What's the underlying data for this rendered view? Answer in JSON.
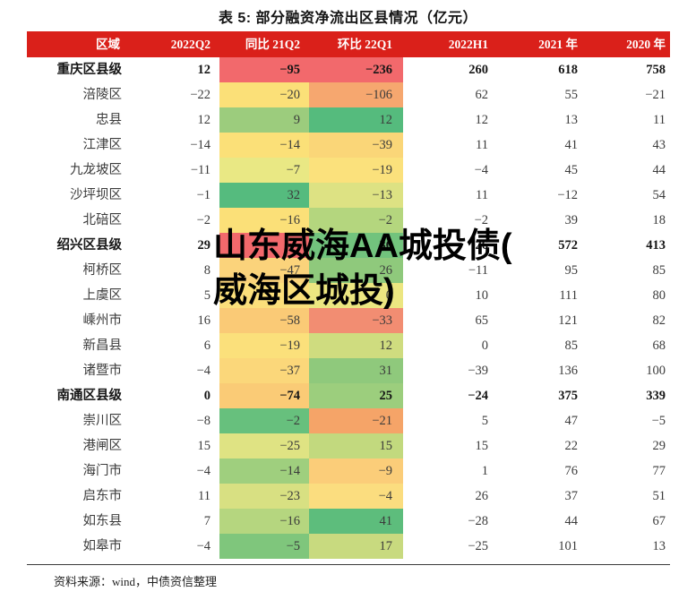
{
  "title": "表 5: 部分融资净流出区县情况（亿元）",
  "watermark": {
    "line1": "山东威海AA城投债(",
    "line2": "威海区城投)"
  },
  "source_note": "资料来源：wind，中债资信整理",
  "colors": {
    "header_bg": "#DA201A",
    "header_text": "#FFFFFF",
    "scale_red": "#F2696C",
    "scale_yellow": "#FBE078",
    "scale_green": "#55BB7D"
  },
  "table": {
    "columns": [
      "区域",
      "2022Q2",
      "同比 21Q2",
      "环比 22Q1",
      "2022H1",
      "2021 年",
      "2020 年"
    ],
    "rows": [
      {
        "name": "重庆区县级",
        "bold": true,
        "values": [
          "12",
          "−95",
          "−236",
          "260",
          "618",
          "758"
        ],
        "yoy_color": "#F2696C",
        "qoq_color": "#F2696C"
      },
      {
        "name": "涪陵区",
        "bold": false,
        "values": [
          "−22",
          "−20",
          "−106",
          "62",
          "55",
          "−21"
        ],
        "yoy_color": "#FBE078",
        "qoq_color": "#F6A76F"
      },
      {
        "name": "忠县",
        "bold": false,
        "values": [
          "12",
          "9",
          "12",
          "12",
          "13",
          "11"
        ],
        "yoy_color": "#9CCC7D",
        "qoq_color": "#55BB7D"
      },
      {
        "name": "江津区",
        "bold": false,
        "values": [
          "−14",
          "−14",
          "−39",
          "11",
          "41",
          "43"
        ],
        "yoy_color": "#FBE078",
        "qoq_color": "#FAD678"
      },
      {
        "name": "九龙坡区",
        "bold": false,
        "values": [
          "−11",
          "−7",
          "−19",
          "−4",
          "45",
          "44"
        ],
        "yoy_color": "#E9E884",
        "qoq_color": "#FBE17C"
      },
      {
        "name": "沙坪坝区",
        "bold": false,
        "values": [
          "−1",
          "32",
          "−13",
          "11",
          "−12",
          "54"
        ],
        "yoy_color": "#55BB7E",
        "qoq_color": "#DDE283"
      },
      {
        "name": "北碚区",
        "bold": false,
        "values": [
          "−2",
          "−16",
          "−2",
          "−2",
          "39",
          "18"
        ],
        "yoy_color": "#FBE078",
        "qoq_color": "#B4D67E"
      },
      {
        "name": "绍兴区县级",
        "bold": true,
        "values": [
          "29",
          "",
          "36",
          "26",
          "572",
          "413"
        ],
        "yoy_color": "#F2696C",
        "qoq_color": "#72C37D"
      },
      {
        "name": "柯桥区",
        "bold": false,
        "values": [
          "8",
          "−47",
          "26",
          "−11",
          "95",
          "85"
        ],
        "yoy_color": "#FBD37B",
        "qoq_color": "#8FC97C"
      },
      {
        "name": "上虞区",
        "bold": false,
        "values": [
          "5",
          "",
          "0",
          "10",
          "111",
          "80"
        ],
        "yoy_color": "#FBDF7B",
        "qoq_color": "#ECE681"
      },
      {
        "name": "嵊州市",
        "bold": false,
        "values": [
          "16",
          "−58",
          "−33",
          "65",
          "121",
          "82"
        ],
        "yoy_color": "#FACA76",
        "qoq_color": "#F28D72"
      },
      {
        "name": "新昌县",
        "bold": false,
        "values": [
          "6",
          "−19",
          "12",
          "0",
          "85",
          "68"
        ],
        "yoy_color": "#FBE07B",
        "qoq_color": "#CFDC7F"
      },
      {
        "name": "诸暨市",
        "bold": false,
        "values": [
          "−4",
          "−37",
          "31",
          "−39",
          "136",
          "100"
        ],
        "yoy_color": "#FBD77A",
        "qoq_color": "#8FC97C"
      },
      {
        "name": "南通区县级",
        "bold": true,
        "values": [
          "0",
          "−74",
          "25",
          "−24",
          "375",
          "339"
        ],
        "yoy_color": "#FACB76",
        "qoq_color": "#9CCE7D"
      },
      {
        "name": "崇川区",
        "bold": false,
        "values": [
          "−8",
          "−2",
          "−21",
          "5",
          "47",
          "−5"
        ],
        "yoy_color": "#67C07D",
        "qoq_color": "#F5A468"
      },
      {
        "name": "港闸区",
        "bold": false,
        "values": [
          "15",
          "−25",
          "15",
          "15",
          "22",
          "29"
        ],
        "yoy_color": "#DFE383",
        "qoq_color": "#C2D97E"
      },
      {
        "name": "海门市",
        "bold": false,
        "values": [
          "−4",
          "−14",
          "−9",
          "1",
          "76",
          "77"
        ],
        "yoy_color": "#9FCF7E",
        "qoq_color": "#FBCD79"
      },
      {
        "name": "启东市",
        "bold": false,
        "values": [
          "11",
          "−23",
          "−4",
          "26",
          "37",
          "51"
        ],
        "yoy_color": "#D8E082",
        "qoq_color": "#FBDD7F"
      },
      {
        "name": "如东县",
        "bold": false,
        "values": [
          "7",
          "−16",
          "41",
          "−28",
          "44",
          "67"
        ],
        "yoy_color": "#B5D67F",
        "qoq_color": "#5DBD7C"
      },
      {
        "name": "如皋市",
        "bold": false,
        "values": [
          "−4",
          "−5",
          "17",
          "−25",
          "101",
          "13"
        ],
        "yoy_color": "#7FC67C",
        "qoq_color": "#C8DA7F"
      }
    ]
  }
}
